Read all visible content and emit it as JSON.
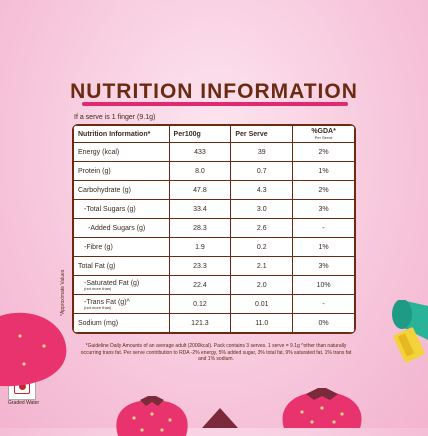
{
  "title": "NUTRITION INFORMATION",
  "serve_note": "If a serve is 1 finger (9.1g)",
  "table": {
    "headers": [
      "Nutrition Information*",
      "Per100g",
      "Per Serve",
      "%GDA*",
      "Per Serve"
    ],
    "rows": [
      {
        "label": "Energy (kcal)",
        "per100": "433",
        "perserve": "39",
        "gda": "2%"
      },
      {
        "label": "Protein (g)",
        "per100": "8.0",
        "perserve": "0.7",
        "gda": "1%"
      },
      {
        "label": "Carbohydrate (g)",
        "per100": "47.8",
        "perserve": "4.3",
        "gda": "2%"
      },
      {
        "label": "-Total Sugars (g)",
        "per100": "33.4",
        "perserve": "3.0",
        "gda": "3%"
      },
      {
        "label": "-Added Sugars (g)",
        "per100": "28.3",
        "perserve": "2.6",
        "gda": "-"
      },
      {
        "label": "-Fibre (g)",
        "per100": "1.9",
        "perserve": "0.2",
        "gda": "1%"
      },
      {
        "label": "Total Fat (g)",
        "per100": "23.3",
        "perserve": "2.1",
        "gda": "3%"
      },
      {
        "label": "-Saturated Fat (g)",
        "sub": "(not more than)",
        "per100": "22.4",
        "perserve": "2.0",
        "gda": "10%"
      },
      {
        "label": "-Trans Fat (g)^",
        "sub": "(not more than)",
        "per100": "0.12",
        "perserve": "0.01",
        "gda": "-"
      },
      {
        "label": "Sodium (mg)",
        "per100": "121.3",
        "perserve": "11.0",
        "gda": "0%"
      }
    ]
  },
  "side_label": "*Approximate Values",
  "footnote": "*Guideline Daily Amounts of an average adult (2000kcal). Pack contains 3 serves. 1 serve = 9.1g ^other than naturally occurring trans fat. Per serve contribution to RDA -2% energy, 5% added sugar, 3% total fat, 9% saturated fat, 1% trans fat and 1% sodium.",
  "fssai_label": "Graded Water",
  "colors": {
    "title": "#6b2b12",
    "accent": "#e0296f",
    "background": "#f7c7dc"
  }
}
